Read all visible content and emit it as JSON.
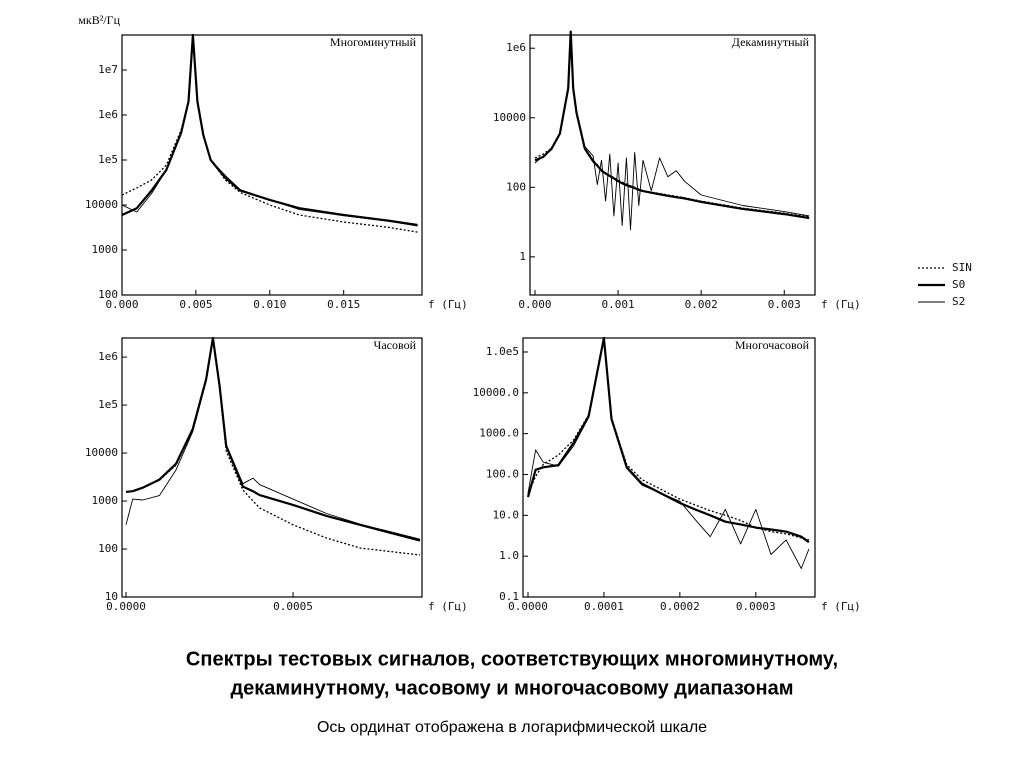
{
  "chart_data": [
    {
      "type": "line",
      "title": "Многоминутный",
      "ylabel": "мкВ²/Гц",
      "xlabel": "f (Гц)",
      "log_y": true,
      "xlim": [
        0,
        0.0203
      ],
      "ylim": [
        100,
        60000000
      ],
      "xticks": [
        {
          "value": 0,
          "label": "0.000"
        },
        {
          "value": 0.005,
          "label": "0.005"
        },
        {
          "value": 0.01,
          "label": "0.010"
        },
        {
          "value": 0.015,
          "label": "0.015"
        }
      ],
      "yticks": [
        100,
        1000,
        10000,
        {
          "value": 100000,
          "label": "1e5"
        },
        {
          "value": 1000000,
          "label": "1e6"
        },
        {
          "value": 10000000,
          "label": "1e7"
        }
      ],
      "x": [
        0,
        0.001,
        0.002,
        0.003,
        0.004,
        0.0045,
        0.0048,
        0.0051,
        0.0055,
        0.006,
        0.007,
        0.008,
        0.01,
        0.012,
        0.015,
        0.018,
        0.02
      ],
      "series": [
        {
          "name": "SIN",
          "color": "#000000",
          "line_style": "dotted",
          "values": [
            16600,
            24000,
            36000,
            77000,
            460000,
            2000000,
            60000000,
            2000000,
            360000,
            100000,
            36000,
            19000,
            10000,
            6000,
            4200,
            3200,
            2500
          ]
        },
        {
          "name": "S0",
          "color": "#000000",
          "line_style": "thick",
          "values": [
            6000,
            8500,
            21000,
            60000,
            400000,
            2000000,
            60000000,
            2000000,
            360000,
            100000,
            40000,
            21000,
            13000,
            8500,
            6000,
            4500,
            3600
          ]
        },
        {
          "name": "S2",
          "color": "#000000",
          "line_style": "thin",
          "values": [
            10000,
            7000,
            18000,
            60000,
            420000,
            2000000,
            60000000,
            2000000,
            360000,
            100000,
            45000,
            22000,
            13000,
            8000,
            5800,
            4400,
            3400
          ]
        }
      ]
    },
    {
      "type": "line",
      "title": "Декаминутный",
      "xlabel": "f (Гц)",
      "log_y": true,
      "xlim": [
        -6e-05,
        0.00337
      ],
      "ylim": [
        0.08,
        2400000
      ],
      "xticks": [
        {
          "value": 0,
          "label": "0.000"
        },
        {
          "value": 0.001,
          "label": "0.001"
        },
        {
          "value": 0.002,
          "label": "0.002"
        },
        {
          "value": 0.003,
          "label": "0.003"
        }
      ],
      "yticks": [
        1,
        100,
        10000,
        {
          "value": 1000000,
          "label": "1e6"
        }
      ],
      "x": [
        0,
        0.0001,
        0.0002,
        0.0003,
        0.0004,
        0.00043,
        0.00046,
        0.0005,
        0.0006,
        0.0007,
        0.00075,
        0.0008,
        0.00085,
        0.0009,
        0.00095,
        0.001,
        0.00105,
        0.0011,
        0.00115,
        0.0012,
        0.00125,
        0.0013,
        0.0014,
        0.0015,
        0.0016,
        0.0017,
        0.0018,
        0.002,
        0.0025,
        0.003,
        0.0033
      ],
      "series": [
        {
          "name": "SIN",
          "color": "#000000",
          "line_style": "dotted",
          "values": [
            700,
            900,
            1360,
            3700,
            75000,
            3000000,
            75000,
            15000,
            1400,
            600,
            450,
            310,
            260,
            220,
            190,
            160,
            140,
            125,
            110,
            100,
            90,
            80,
            72,
            67,
            60,
            55,
            50,
            40,
            25,
            18,
            14
          ]
        },
        {
          "name": "S0",
          "color": "#000000",
          "line_style": "thick",
          "values": [
            600,
            750,
            1300,
            3500,
            70000,
            3000000,
            70000,
            14000,
            1300,
            560,
            420,
            300,
            250,
            210,
            180,
            150,
            130,
            115,
            105,
            95,
            85,
            78,
            70,
            63,
            57,
            52,
            48,
            38,
            24,
            17,
            13
          ]
        },
        {
          "name": "S2",
          "color": "#000000",
          "line_style": "thin",
          "values": [
            500,
            800,
            1200,
            3600,
            72000,
            3000000,
            72000,
            15000,
            1500,
            800,
            120,
            600,
            40,
            900,
            15,
            500,
            8,
            700,
            6,
            1000,
            30,
            600,
            80,
            700,
            200,
            300,
            150,
            60,
            30,
            20,
            15
          ]
        }
      ]
    },
    {
      "type": "line",
      "title": "Часовой",
      "xlabel": "f (Гц)",
      "log_y": true,
      "xlim": [
        -1.2e-05,
        0.000886
      ],
      "ylim": [
        10,
        2500000
      ],
      "xticks": [
        {
          "value": 0,
          "label": "0.0000"
        },
        {
          "value": 0.0005,
          "label": "0.0005"
        }
      ],
      "yticks": [
        10,
        100,
        1000,
        10000,
        {
          "value": 100000,
          "label": "1e5"
        },
        {
          "value": 1000000,
          "label": "1e6"
        }
      ],
      "x": [
        0,
        2e-05,
        5e-05,
        0.0001,
        0.00015,
        0.0002,
        0.00024,
        0.00026,
        0.00028,
        0.0003,
        0.00035,
        0.00038,
        0.0004,
        0.0005,
        0.0006,
        0.0007,
        0.00088
      ],
      "series": [
        {
          "name": "SIN",
          "color": "#000000",
          "line_style": "dotted",
          "values": [
            1550,
            1600,
            1900,
            2700,
            5600,
            30000,
            330000,
            2500000,
            230000,
            11000,
            1700,
            1000,
            720,
            320,
            170,
            105,
            75
          ]
        },
        {
          "name": "S0",
          "color": "#000000",
          "line_style": "thick",
          "values": [
            1550,
            1600,
            1900,
            2800,
            6000,
            32000,
            350000,
            2500000,
            250000,
            14000,
            2000,
            1600,
            1330,
            830,
            490,
            320,
            150
          ]
        },
        {
          "name": "S2",
          "color": "#000000",
          "line_style": "thin",
          "values": [
            320,
            1100,
            1050,
            1300,
            4500,
            28000,
            320000,
            2500000,
            220000,
            15000,
            2300,
            3000,
            2200,
            1100,
            550,
            330,
            160
          ]
        }
      ]
    },
    {
      "type": "line",
      "title": "Многочасовой",
      "xlabel": "f (Гц)",
      "log_y": true,
      "xlim": [
        -6.6e-06,
        0.000378
      ],
      "ylim": [
        0.1,
        220000
      ],
      "xticks": [
        {
          "value": 0,
          "label": "0.0000"
        },
        {
          "value": 0.0001,
          "label": "0.0001"
        },
        {
          "value": 0.0002,
          "label": "0.0002"
        },
        {
          "value": 0.0003,
          "label": "0.0003"
        }
      ],
      "yticks": [
        0.1,
        {
          "value": 1,
          "label": "1.0"
        },
        {
          "value": 10,
          "label": "10.0"
        },
        {
          "value": 100,
          "label": "100.0"
        },
        {
          "value": 1000,
          "label": "1000.0"
        },
        {
          "value": 10000,
          "label": "10000.0"
        },
        {
          "value": 100000,
          "label": "1.0e5"
        }
      ],
      "x": [
        0,
        1e-05,
        2e-05,
        4e-05,
        6e-05,
        8e-05,
        0.0001,
        0.00011,
        0.00013,
        0.00015,
        0.0002,
        0.00022,
        0.00024,
        0.00026,
        0.00028,
        0.0003,
        0.00032,
        0.00034,
        0.00036,
        0.00037
      ],
      "series": [
        {
          "name": "SIN",
          "color": "#000000",
          "line_style": "dotted",
          "values": [
            33,
            90,
            175,
            300,
            700,
            2900,
            220000,
            2500,
            175,
            75,
            25,
            18,
            13,
            10,
            7.5,
            5,
            4,
            3.5,
            2.8,
            2.5
          ]
        },
        {
          "name": "S0",
          "color": "#000000",
          "line_style": "thick",
          "values": [
            28,
            130,
            150,
            170,
            600,
            2700,
            220000,
            2300,
            150,
            60,
            20,
            14,
            10,
            7,
            6,
            5,
            4.5,
            4,
            3,
            2.2
          ]
        },
        {
          "name": "S2",
          "color": "#000000",
          "line_style": "thin",
          "values": [
            35,
            400,
            200,
            160,
            500,
            2500,
            220000,
            2400,
            140,
            55,
            22,
            8,
            3,
            14,
            2,
            14,
            1.1,
            2.5,
            0.5,
            1.5
          ]
        }
      ]
    }
  ],
  "caption": {
    "title": [
      "Спектры тестовых сигналов, соответствующих многоминутному,",
      "декаминутному, часовому и многочасовому диапазонам"
    ],
    "subtitle": "Ось ординат отображена в логарифмической шкале"
  }
}
